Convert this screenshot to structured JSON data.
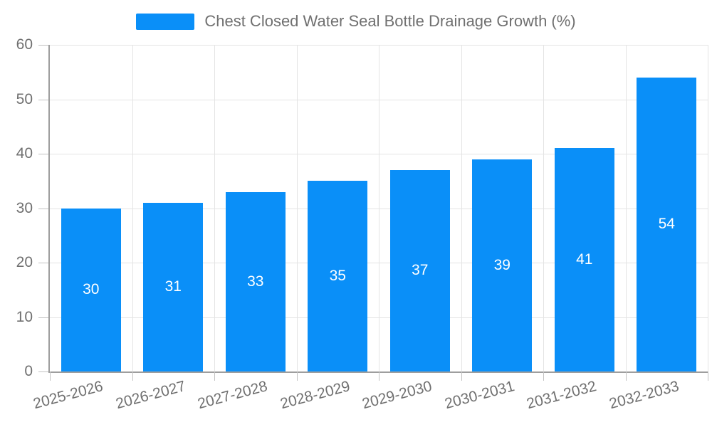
{
  "chart_data": {
    "type": "bar",
    "title": "Chest Closed Water Seal Bottle Drainage Growth (%)",
    "categories": [
      "2025-2026",
      "2026-2027",
      "2027-2028",
      "2028-2029",
      "2029-2030",
      "2030-2031",
      "2031-2032",
      "2032-2033"
    ],
    "values": [
      30,
      31,
      33,
      35,
      37,
      39,
      41,
      54
    ],
    "yticks": [
      0,
      10,
      20,
      30,
      40,
      50,
      60
    ],
    "ylim": [
      0,
      60
    ],
    "xlabel": "",
    "ylabel": "",
    "grid": true,
    "legend_position": "top-center",
    "x_label_rotation_deg": -15,
    "bar_color": "#0A8FF8",
    "bar_label_color": "#FFFFFF",
    "text_color": "#707070",
    "grid_color": "#E4E4E4",
    "tick_color": "#C2C2C2",
    "axis_color": "#9E9E9E",
    "background_color": "#FFFFFF"
  }
}
